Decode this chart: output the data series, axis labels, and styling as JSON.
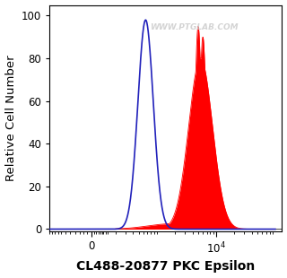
{
  "xlabel": "CL488-20877 PKC Epsilon",
  "ylabel": "Relative Cell Number",
  "xlabel_fontsize": 10,
  "ylabel_fontsize": 9.5,
  "watermark": "WWW.PTGLAB.COM",
  "ylim": [
    -1,
    105
  ],
  "yticks": [
    0,
    20,
    40,
    60,
    80,
    100
  ],
  "background_color": "#ffffff",
  "blue_color": "#2222bb",
  "red_color": "#ff0000",
  "linthresh": 150,
  "linscale": 0.25,
  "xmax": 100000
}
